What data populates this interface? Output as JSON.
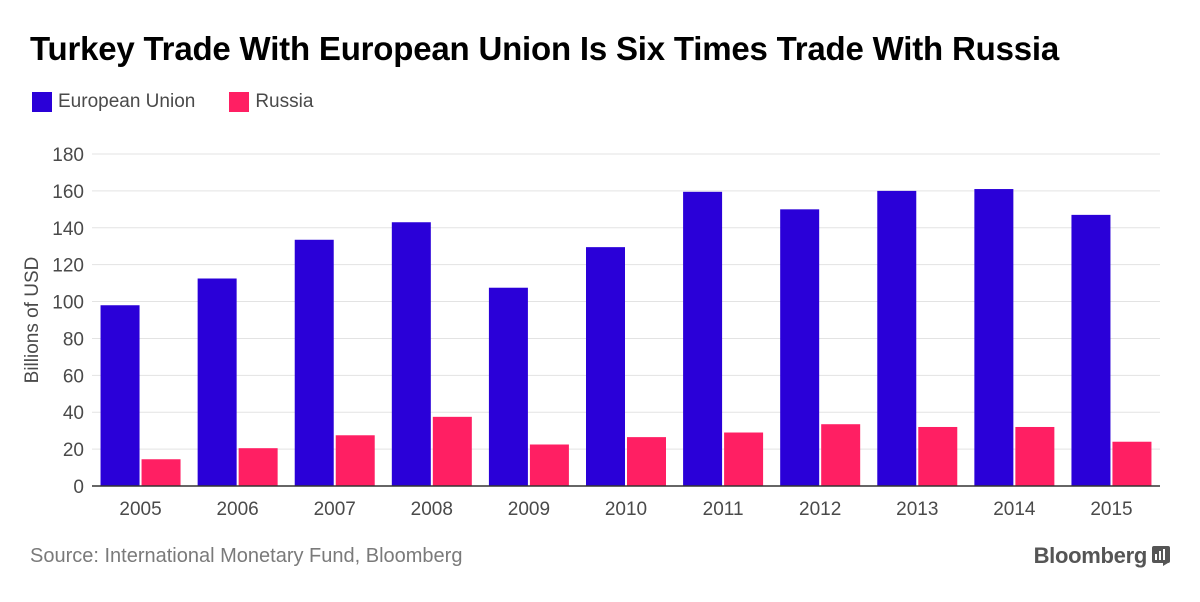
{
  "title": "Turkey Trade With European Union Is Six Times Trade With Russia",
  "legend": [
    {
      "label": "European Union",
      "color": "#2a00d8"
    },
    {
      "label": "Russia",
      "color": "#ff1f63"
    }
  ],
  "source": "Source: International Monetary Fund, Bloomberg",
  "brand": "Bloomberg",
  "chart_data": {
    "type": "bar",
    "title": "Turkey Trade With European Union Is Six Times Trade With Russia",
    "xlabel": "",
    "ylabel": "Billions of USD",
    "ylim": [
      0,
      180
    ],
    "yticks": [
      0,
      20,
      40,
      60,
      80,
      100,
      120,
      140,
      160,
      180
    ],
    "grid": true,
    "legend_position": "top-left",
    "categories": [
      "2005",
      "2006",
      "2007",
      "2008",
      "2009",
      "2010",
      "2011",
      "2012",
      "2013",
      "2014",
      "2015"
    ],
    "series": [
      {
        "name": "European Union",
        "color": "#2a00d8",
        "values": [
          98,
          112.5,
          133.5,
          143,
          107.5,
          129.5,
          159.5,
          150,
          160,
          161,
          147
        ]
      },
      {
        "name": "Russia",
        "color": "#ff1f63",
        "values": [
          14.5,
          20.5,
          27.5,
          37.5,
          22.5,
          26.5,
          29,
          33.5,
          32,
          32,
          24
        ]
      }
    ]
  }
}
